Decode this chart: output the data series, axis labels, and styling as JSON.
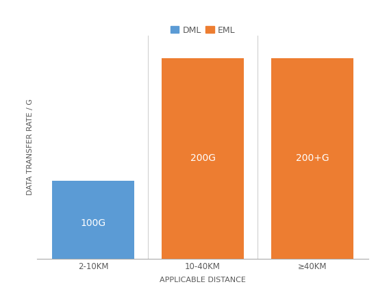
{
  "categories": [
    "2-10KM",
    "10-40KM",
    "≥40KM"
  ],
  "dml_values": [
    35,
    0,
    0
  ],
  "eml_values": [
    0,
    90,
    90
  ],
  "bar_labels": [
    "100G",
    "200G",
    "200+G"
  ],
  "dml_color": "#5B9BD5",
  "eml_color": "#ED7D31",
  "xlabel": "APPLICABLE DISTANCE",
  "ylabel": "DATA TRANSFER RATE / G",
  "legend_labels": [
    "DML",
    "EML"
  ],
  "ylim": [
    0,
    100
  ],
  "bar_width": 0.75,
  "label_fontsize": 10,
  "axis_label_fontsize": 8,
  "tick_fontsize": 8.5,
  "background_color": "#ffffff",
  "separator_color": "#d0d0d0",
  "spine_color": "#aaaaaa",
  "text_color": "#595959"
}
